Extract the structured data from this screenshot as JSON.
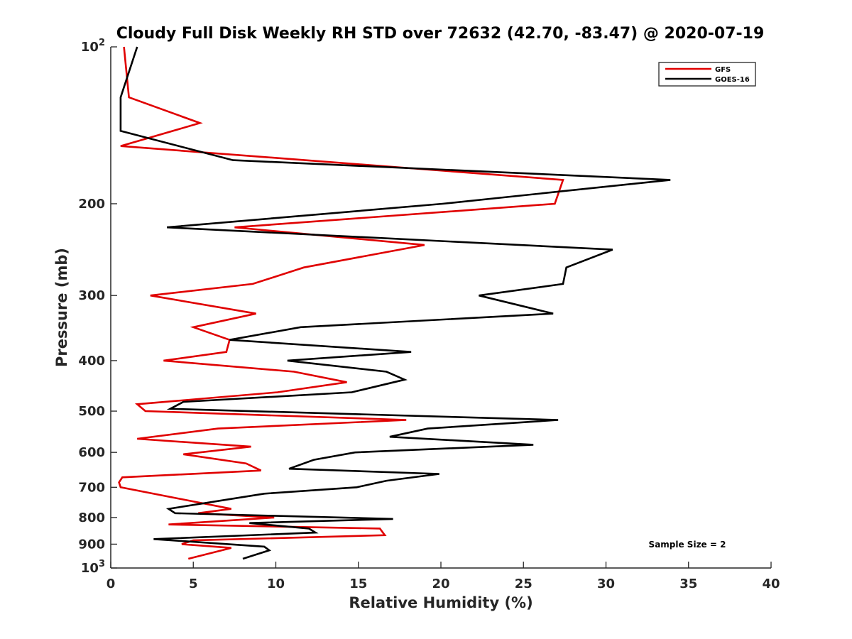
{
  "chart_data": {
    "type": "line",
    "title": "Cloudy Full Disk Weekly RH STD over 72632 (42.70, -83.47) @ 2020-07-19",
    "xlabel": "Relative Humidity (%)",
    "ylabel": "Pressure (mb)",
    "xlim": [
      0,
      40
    ],
    "ylim": [
      100,
      1000
    ],
    "y_scale": "log",
    "y_reversed": true,
    "x_ticks": [
      "0",
      "5",
      "10",
      "15",
      "20",
      "25",
      "30",
      "35",
      "40"
    ],
    "y_ticks": [
      {
        "value": 100,
        "base": "10",
        "exp": "2"
      },
      {
        "value": 200,
        "label": "200"
      },
      {
        "value": 300,
        "label": "300"
      },
      {
        "value": 400,
        "label": "400"
      },
      {
        "value": 500,
        "label": "500"
      },
      {
        "value": 600,
        "label": "600"
      },
      {
        "value": 700,
        "label": "700"
      },
      {
        "value": 800,
        "label": "800"
      },
      {
        "value": 900,
        "label": "900"
      },
      {
        "value": 1000,
        "base": "10",
        "exp": "3"
      }
    ],
    "grid": false,
    "legend_position": "top-right",
    "annotation": "Sample Size = 2",
    "series": [
      {
        "name": "GFS",
        "color": "#e00000",
        "points": [
          {
            "x": 0.8,
            "p": 100
          },
          {
            "x": 1.1,
            "p": 125
          },
          {
            "x": 5.4,
            "p": 140
          },
          {
            "x": 0.6,
            "p": 155
          },
          {
            "x": 27.4,
            "p": 180
          },
          {
            "x": 26.9,
            "p": 200
          },
          {
            "x": 7.5,
            "p": 222
          },
          {
            "x": 19.0,
            "p": 240
          },
          {
            "x": 11.7,
            "p": 265
          },
          {
            "x": 8.6,
            "p": 285
          },
          {
            "x": 2.4,
            "p": 300
          },
          {
            "x": 8.8,
            "p": 325
          },
          {
            "x": 5.0,
            "p": 345
          },
          {
            "x": 7.2,
            "p": 365
          },
          {
            "x": 7.0,
            "p": 385
          },
          {
            "x": 3.2,
            "p": 400
          },
          {
            "x": 11.1,
            "p": 420
          },
          {
            "x": 14.3,
            "p": 440
          },
          {
            "x": 10.1,
            "p": 460
          },
          {
            "x": 1.6,
            "p": 485
          },
          {
            "x": 2.1,
            "p": 500
          },
          {
            "x": 17.9,
            "p": 520
          },
          {
            "x": 6.5,
            "p": 540
          },
          {
            "x": 1.6,
            "p": 565
          },
          {
            "x": 8.5,
            "p": 585
          },
          {
            "x": 4.4,
            "p": 605
          },
          {
            "x": 8.2,
            "p": 630
          },
          {
            "x": 9.1,
            "p": 650
          },
          {
            "x": 0.7,
            "p": 670
          },
          {
            "x": 0.5,
            "p": 685
          },
          {
            "x": 0.6,
            "p": 700
          },
          {
            "x": 4.5,
            "p": 740
          },
          {
            "x": 7.3,
            "p": 770
          },
          {
            "x": 5.3,
            "p": 785
          },
          {
            "x": 9.9,
            "p": 800
          },
          {
            "x": 3.5,
            "p": 825
          },
          {
            "x": 16.3,
            "p": 840
          },
          {
            "x": 16.6,
            "p": 865
          },
          {
            "x": 5.0,
            "p": 885
          },
          {
            "x": 4.3,
            "p": 900
          },
          {
            "x": 7.3,
            "p": 915
          },
          {
            "x": 4.7,
            "p": 960
          }
        ]
      },
      {
        "name": "GOES-16",
        "color": "#000000",
        "points": [
          {
            "x": 1.6,
            "p": 100
          },
          {
            "x": 0.6,
            "p": 125
          },
          {
            "x": 0.6,
            "p": 145
          },
          {
            "x": 7.4,
            "p": 165
          },
          {
            "x": 33.9,
            "p": 180
          },
          {
            "x": 20.1,
            "p": 200
          },
          {
            "x": 3.4,
            "p": 222
          },
          {
            "x": 30.4,
            "p": 245
          },
          {
            "x": 27.6,
            "p": 265
          },
          {
            "x": 27.4,
            "p": 285
          },
          {
            "x": 22.3,
            "p": 300
          },
          {
            "x": 26.8,
            "p": 325
          },
          {
            "x": 11.5,
            "p": 345
          },
          {
            "x": 7.2,
            "p": 365
          },
          {
            "x": 18.2,
            "p": 385
          },
          {
            "x": 10.7,
            "p": 400
          },
          {
            "x": 16.7,
            "p": 420
          },
          {
            "x": 17.8,
            "p": 435
          },
          {
            "x": 14.6,
            "p": 460
          },
          {
            "x": 4.4,
            "p": 480
          },
          {
            "x": 3.6,
            "p": 495
          },
          {
            "x": 27.1,
            "p": 520
          },
          {
            "x": 19.2,
            "p": 540
          },
          {
            "x": 16.9,
            "p": 560
          },
          {
            "x": 25.6,
            "p": 580
          },
          {
            "x": 14.8,
            "p": 600
          },
          {
            "x": 12.3,
            "p": 620
          },
          {
            "x": 10.8,
            "p": 645
          },
          {
            "x": 19.9,
            "p": 660
          },
          {
            "x": 16.7,
            "p": 680
          },
          {
            "x": 14.9,
            "p": 700
          },
          {
            "x": 9.3,
            "p": 720
          },
          {
            "x": 3.5,
            "p": 770
          },
          {
            "x": 3.9,
            "p": 785
          },
          {
            "x": 17.1,
            "p": 805
          },
          {
            "x": 8.4,
            "p": 820
          },
          {
            "x": 12.0,
            "p": 840
          },
          {
            "x": 12.4,
            "p": 855
          },
          {
            "x": 2.6,
            "p": 880
          },
          {
            "x": 9.3,
            "p": 910
          },
          {
            "x": 9.6,
            "p": 925
          },
          {
            "x": 8.0,
            "p": 960
          }
        ]
      }
    ]
  }
}
